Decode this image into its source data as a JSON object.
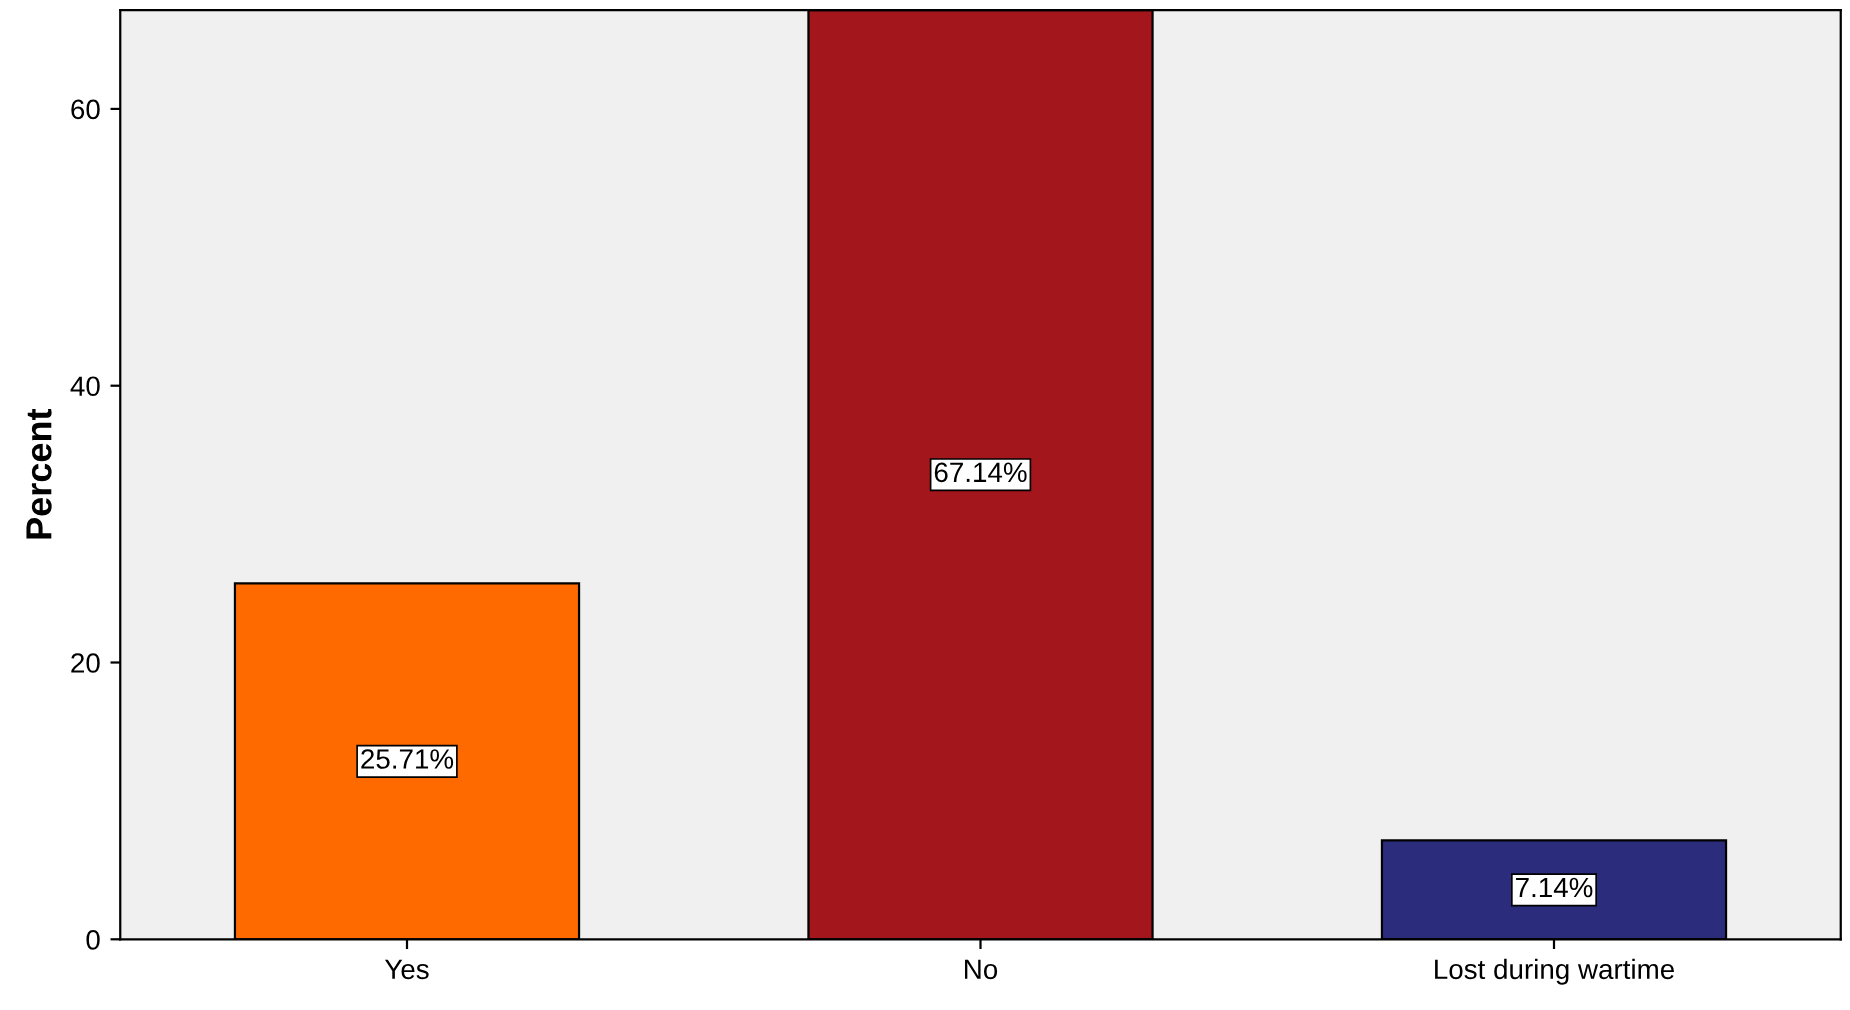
{
  "chart_data": {
    "type": "bar",
    "ylabel": "Percent",
    "categories": [
      "Yes",
      "No",
      "Lost during wartime"
    ],
    "values": [
      25.71,
      67.14,
      7.14
    ],
    "colors": [
      "#ff6a00",
      "#a3161c",
      "#2b2c7c"
    ],
    "value_labels": [
      "25.71%",
      "67.14%",
      "7.14%"
    ],
    "ylim": [
      0,
      67.14
    ],
    "yticks": [
      0,
      20,
      40,
      60
    ],
    "grid": false,
    "legend": false
  }
}
